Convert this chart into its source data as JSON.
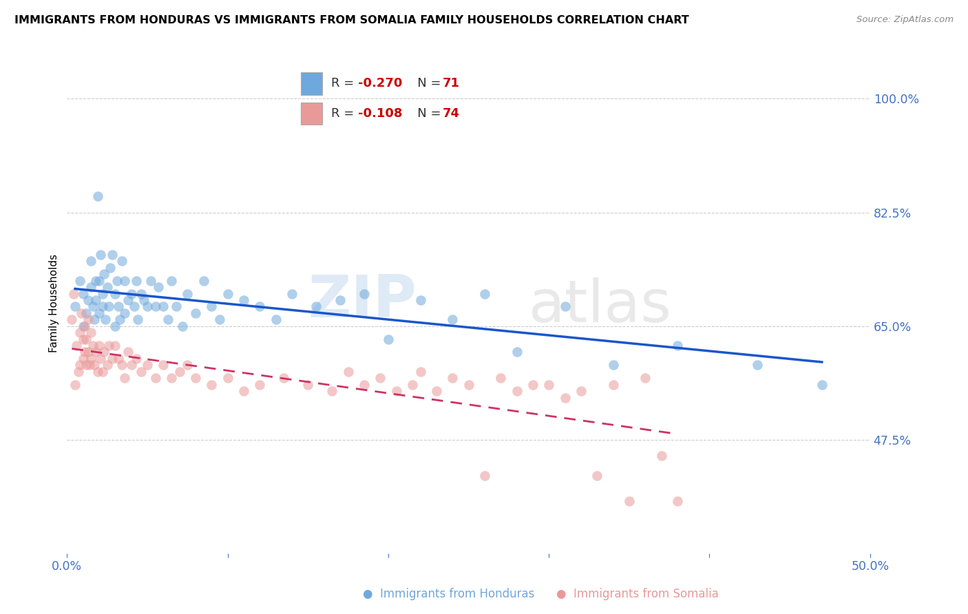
{
  "title": "IMMIGRANTS FROM HONDURAS VS IMMIGRANTS FROM SOMALIA FAMILY HOUSEHOLDS CORRELATION CHART",
  "source": "Source: ZipAtlas.com",
  "ylabel": "Family Households",
  "yticks": [
    0.475,
    0.65,
    0.825,
    1.0
  ],
  "ytick_labels": [
    "47.5%",
    "65.0%",
    "82.5%",
    "100.0%"
  ],
  "xlim": [
    0.0,
    0.5
  ],
  "ylim": [
    0.3,
    1.07
  ],
  "legend_r_honduras": "-0.270",
  "legend_n_honduras": "71",
  "legend_r_somalia": "-0.108",
  "legend_n_somalia": "74",
  "color_honduras": "#6fa8dc",
  "color_somalia": "#ea9999",
  "trendline_color_honduras": "#1a56cc",
  "trendline_color_somalia": "#cc3366",
  "watermark_zip": "ZIP",
  "watermark_atlas": "atlas",
  "title_fontsize": 11.5,
  "source_fontsize": 9.5,
  "ylabel_fontsize": 11,
  "honduras_x": [
    0.005,
    0.008,
    0.01,
    0.01,
    0.012,
    0.013,
    0.015,
    0.015,
    0.016,
    0.017,
    0.018,
    0.018,
    0.019,
    0.02,
    0.02,
    0.021,
    0.022,
    0.022,
    0.023,
    0.024,
    0.025,
    0.026,
    0.027,
    0.028,
    0.03,
    0.03,
    0.031,
    0.032,
    0.033,
    0.034,
    0.036,
    0.036,
    0.038,
    0.04,
    0.042,
    0.043,
    0.044,
    0.046,
    0.048,
    0.05,
    0.052,
    0.055,
    0.057,
    0.06,
    0.063,
    0.065,
    0.068,
    0.072,
    0.075,
    0.08,
    0.085,
    0.09,
    0.095,
    0.1,
    0.11,
    0.12,
    0.13,
    0.14,
    0.155,
    0.17,
    0.185,
    0.2,
    0.22,
    0.24,
    0.26,
    0.28,
    0.31,
    0.34,
    0.38,
    0.43,
    0.47
  ],
  "honduras_y": [
    0.68,
    0.72,
    0.65,
    0.7,
    0.67,
    0.69,
    0.75,
    0.71,
    0.68,
    0.66,
    0.72,
    0.69,
    0.85,
    0.67,
    0.72,
    0.76,
    0.7,
    0.68,
    0.73,
    0.66,
    0.71,
    0.68,
    0.74,
    0.76,
    0.65,
    0.7,
    0.72,
    0.68,
    0.66,
    0.75,
    0.67,
    0.72,
    0.69,
    0.7,
    0.68,
    0.72,
    0.66,
    0.7,
    0.69,
    0.68,
    0.72,
    0.68,
    0.71,
    0.68,
    0.66,
    0.72,
    0.68,
    0.65,
    0.7,
    0.67,
    0.72,
    0.68,
    0.66,
    0.7,
    0.69,
    0.68,
    0.66,
    0.7,
    0.68,
    0.69,
    0.7,
    0.63,
    0.69,
    0.66,
    0.7,
    0.61,
    0.68,
    0.59,
    0.62,
    0.59,
    0.56
  ],
  "somalia_x": [
    0.003,
    0.004,
    0.005,
    0.006,
    0.007,
    0.008,
    0.008,
    0.009,
    0.01,
    0.01,
    0.011,
    0.011,
    0.012,
    0.012,
    0.013,
    0.013,
    0.014,
    0.015,
    0.015,
    0.016,
    0.017,
    0.018,
    0.019,
    0.02,
    0.021,
    0.022,
    0.023,
    0.025,
    0.026,
    0.028,
    0.03,
    0.032,
    0.034,
    0.036,
    0.038,
    0.04,
    0.043,
    0.046,
    0.05,
    0.055,
    0.06,
    0.065,
    0.07,
    0.075,
    0.08,
    0.09,
    0.1,
    0.11,
    0.12,
    0.135,
    0.15,
    0.165,
    0.175,
    0.185,
    0.195,
    0.205,
    0.215,
    0.22,
    0.23,
    0.24,
    0.25,
    0.26,
    0.27,
    0.28,
    0.29,
    0.3,
    0.31,
    0.32,
    0.33,
    0.34,
    0.35,
    0.36,
    0.37,
    0.38
  ],
  "somalia_y": [
    0.66,
    0.7,
    0.56,
    0.62,
    0.58,
    0.64,
    0.59,
    0.67,
    0.6,
    0.63,
    0.61,
    0.65,
    0.59,
    0.63,
    0.61,
    0.66,
    0.59,
    0.64,
    0.6,
    0.62,
    0.59,
    0.61,
    0.58,
    0.62,
    0.6,
    0.58,
    0.61,
    0.59,
    0.62,
    0.6,
    0.62,
    0.6,
    0.59,
    0.57,
    0.61,
    0.59,
    0.6,
    0.58,
    0.59,
    0.57,
    0.59,
    0.57,
    0.58,
    0.59,
    0.57,
    0.56,
    0.57,
    0.55,
    0.56,
    0.57,
    0.56,
    0.55,
    0.58,
    0.56,
    0.57,
    0.55,
    0.56,
    0.58,
    0.55,
    0.57,
    0.56,
    0.42,
    0.57,
    0.55,
    0.56,
    0.56,
    0.54,
    0.55,
    0.42,
    0.56,
    0.38,
    0.57,
    0.45,
    0.38
  ]
}
